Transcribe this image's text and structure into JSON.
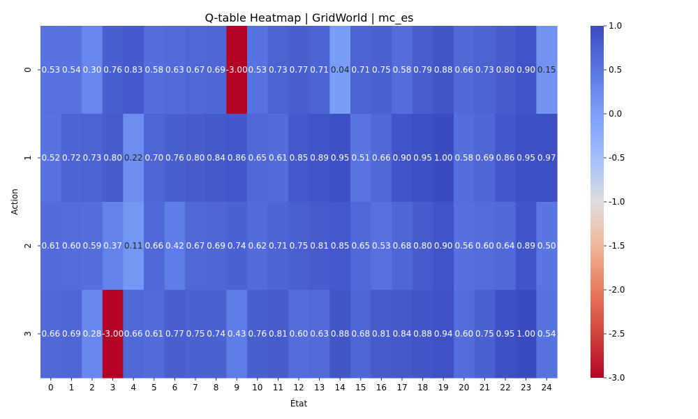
{
  "chart_data": {
    "type": "heatmap",
    "title": "Q-table Heatmap | GridWorld | mc_es",
    "xlabel": "État",
    "ylabel": "Action",
    "x_categories": [
      "0",
      "1",
      "2",
      "3",
      "4",
      "5",
      "6",
      "7",
      "8",
      "9",
      "10",
      "11",
      "12",
      "13",
      "14",
      "15",
      "16",
      "17",
      "18",
      "19",
      "20",
      "21",
      "22",
      "23",
      "24"
    ],
    "y_categories": [
      "0",
      "1",
      "2",
      "3"
    ],
    "values": [
      [
        0.53,
        0.54,
        0.3,
        0.76,
        0.83,
        0.58,
        0.63,
        0.67,
        0.69,
        -3.0,
        0.53,
        0.73,
        0.77,
        0.71,
        0.04,
        0.71,
        0.75,
        0.58,
        0.79,
        0.88,
        0.66,
        0.73,
        0.8,
        0.9,
        0.15
      ],
      [
        0.52,
        0.72,
        0.73,
        0.8,
        0.22,
        0.7,
        0.76,
        0.8,
        0.84,
        0.86,
        0.65,
        0.61,
        0.85,
        0.89,
        0.95,
        0.51,
        0.66,
        0.9,
        0.95,
        1.0,
        0.58,
        0.69,
        0.86,
        0.95,
        0.97
      ],
      [
        0.61,
        0.6,
        0.59,
        0.37,
        0.11,
        0.66,
        0.42,
        0.67,
        0.69,
        0.74,
        0.62,
        0.71,
        0.75,
        0.81,
        0.85,
        0.65,
        0.53,
        0.68,
        0.8,
        0.9,
        0.56,
        0.6,
        0.64,
        0.89,
        0.5
      ],
      [
        0.66,
        0.69,
        0.28,
        -3.0,
        0.66,
        0.61,
        0.77,
        0.75,
        0.74,
        0.43,
        0.76,
        0.81,
        0.6,
        0.63,
        0.88,
        0.68,
        0.81,
        0.84,
        0.88,
        0.94,
        0.6,
        0.75,
        0.95,
        1.0,
        0.54
      ]
    ],
    "value_labels": [
      [
        "0.53",
        "0.54",
        "0.30",
        "0.76",
        "0.83",
        "0.58",
        "0.63",
        "0.67",
        "0.69",
        "-3.00",
        "0.53",
        "0.73",
        "0.77",
        "0.71",
        "0.04",
        "0.71",
        "0.75",
        "0.58",
        "0.79",
        "0.88",
        "0.66",
        "0.73",
        "0.80",
        "0.90",
        "0.15"
      ],
      [
        "0.52",
        "0.72",
        "0.73",
        "0.80",
        "0.22",
        "0.70",
        "0.76",
        "0.80",
        "0.84",
        "0.86",
        "0.65",
        "0.61",
        "0.85",
        "0.89",
        "0.95",
        "0.51",
        "0.66",
        "0.90",
        "0.95",
        "1.00",
        "0.58",
        "0.69",
        "0.86",
        "0.95",
        "0.97"
      ],
      [
        "0.61",
        "0.60",
        "0.59",
        "0.37",
        "0.11",
        "0.66",
        "0.42",
        "0.67",
        "0.69",
        "0.74",
        "0.62",
        "0.71",
        "0.75",
        "0.81",
        "0.85",
        "0.65",
        "0.53",
        "0.68",
        "0.80",
        "0.90",
        "0.56",
        "0.60",
        "0.64",
        "0.89",
        "0.50"
      ],
      [
        "0.66",
        "0.69",
        "0.28",
        "-3.00",
        "0.66",
        "0.61",
        "0.77",
        "0.75",
        "0.74",
        "0.43",
        "0.76",
        "0.81",
        "0.60",
        "0.63",
        "0.88",
        "0.68",
        "0.81",
        "0.84",
        "0.88",
        "0.94",
        "0.60",
        "0.75",
        "0.95",
        "1.00",
        "0.54"
      ]
    ],
    "colormap": "coolwarm",
    "vmin": -3.0,
    "vmax": 1.0,
    "colorbar_ticks": [
      "1.0",
      "0.5",
      "0.0",
      "-0.5",
      "-1.0",
      "-1.5",
      "-2.0",
      "-2.5",
      "-3.0"
    ],
    "colorbar_tick_values": [
      1.0,
      0.5,
      0.0,
      -0.5,
      -1.0,
      -1.5,
      -2.0,
      -2.5,
      -3.0
    ],
    "colorbar_position": "right",
    "annotated": true,
    "grid": false
  }
}
